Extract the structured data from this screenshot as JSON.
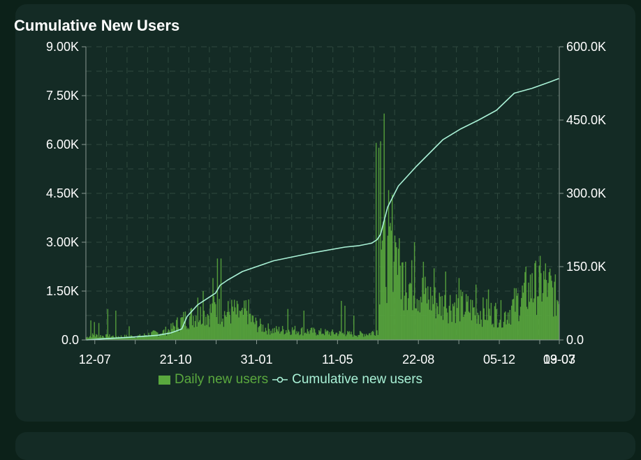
{
  "title": "Cumulative New Users",
  "colors": {
    "background": "#0c2119",
    "card": "#142b25",
    "bar": "#5aa83e",
    "line": "#a9f1d6",
    "grid": "#2f4a3f",
    "axis": "#8a9a94",
    "text": "#ffffff"
  },
  "chart_data": {
    "type": "bar",
    "title": "Cumulative New Users",
    "x_tick_labels": [
      "12-07",
      "21-10",
      "31-01",
      "11-05",
      "22-08",
      "05-12",
      "19-03",
      "03-07"
    ],
    "y_left": {
      "ticks": [
        "0.0",
        "1.50K",
        "3.00K",
        "4.50K",
        "6.00K",
        "7.50K",
        "9.00K"
      ],
      "ylim": [
        0,
        9000
      ]
    },
    "y_right": {
      "ticks": [
        "0.0",
        "150.0K",
        "300.0K",
        "450.0K",
        "600.0K"
      ],
      "ylim": [
        0,
        600000
      ]
    },
    "grid": true,
    "legend_position": "bottom",
    "series": [
      {
        "name": "Daily new users",
        "type": "bar",
        "axis": "left",
        "color": "#5aa83e",
        "anchors": [
          [
            0,
            80
          ],
          [
            6,
            150
          ],
          [
            20,
            120
          ],
          [
            40,
            110
          ],
          [
            60,
            120
          ],
          [
            70,
            180
          ],
          [
            85,
            240
          ],
          [
            95,
            340
          ],
          [
            100,
            460
          ],
          [
            110,
            650
          ],
          [
            122,
            780
          ],
          [
            135,
            820
          ],
          [
            145,
            980
          ],
          [
            155,
            820
          ],
          [
            165,
            900
          ],
          [
            175,
            700
          ],
          [
            180,
            980
          ],
          [
            185,
            640
          ],
          [
            190,
            500
          ],
          [
            200,
            380
          ],
          [
            210,
            300
          ],
          [
            230,
            320
          ],
          [
            250,
            270
          ],
          [
            270,
            230
          ],
          [
            290,
            200
          ],
          [
            300,
            180
          ],
          [
            318,
            200
          ],
          [
            327,
            330
          ],
          [
            331,
            3600
          ],
          [
            335,
            2700
          ],
          [
            339,
            2300
          ],
          [
            342,
            3200
          ],
          [
            345,
            3100
          ],
          [
            350,
            2200
          ],
          [
            360,
            1800
          ],
          [
            370,
            1600
          ],
          [
            380,
            1400
          ],
          [
            390,
            1200
          ],
          [
            400,
            1100
          ],
          [
            410,
            1150
          ],
          [
            420,
            1050
          ],
          [
            440,
            900
          ],
          [
            470,
            800
          ],
          [
            480,
            1100
          ],
          [
            495,
            1500
          ],
          [
            505,
            1700
          ],
          [
            515,
            1800
          ],
          [
            520,
            1650
          ],
          [
            527,
            1300
          ]
        ],
        "spikes": [
          [
            5,
            600
          ],
          [
            9,
            550
          ],
          [
            14,
            520
          ],
          [
            24,
            950
          ],
          [
            33,
            900
          ],
          [
            48,
            420
          ],
          [
            108,
            700
          ],
          [
            125,
            1300
          ],
          [
            131,
            1500
          ],
          [
            142,
            1900
          ],
          [
            147,
            2500
          ],
          [
            151,
            2500
          ],
          [
            172,
            900
          ],
          [
            226,
            950
          ],
          [
            244,
            900
          ],
          [
            286,
            1200
          ],
          [
            290,
            1050
          ],
          [
            300,
            750
          ],
          [
            325,
            6050
          ],
          [
            328,
            5900
          ],
          [
            330,
            6100
          ],
          [
            334,
            6950
          ],
          [
            339,
            4600
          ],
          [
            347,
            3000
          ],
          [
            350,
            2800
          ],
          [
            358,
            2400
          ],
          [
            368,
            3000
          ],
          [
            378,
            2400
          ],
          [
            390,
            2200
          ],
          [
            403,
            2100
          ],
          [
            418,
            1900
          ],
          [
            437,
            1700
          ],
          [
            451,
            1550
          ],
          [
            493,
            2250
          ],
          [
            500,
            2050
          ],
          [
            510,
            2050
          ],
          [
            518,
            1750
          ]
        ]
      },
      {
        "name": "Cumulative new users",
        "type": "line",
        "axis": "right",
        "color": "#a9f1d6",
        "x": [
          0,
          20,
          50,
          80,
          95,
          107,
          113,
          125,
          145,
          150,
          158,
          175,
          210,
          250,
          290,
          306,
          320,
          326,
          330,
          338,
          350,
          370,
          400,
          420,
          440,
          460,
          480,
          500,
          520,
          530
        ],
        "y": [
          0,
          2400,
          5600,
          9600,
          14400,
          22400,
          48000,
          72000,
          96000,
          112000,
          122000,
          140000,
          162000,
          177000,
          190000,
          193000,
          198000,
          205000,
          216000,
          272000,
          315000,
          355000,
          410000,
          432000,
          450000,
          470000,
          505000,
          515000,
          528000,
          535000
        ]
      }
    ]
  },
  "legend": {
    "bar_label": "Daily new users",
    "line_label": "Cumulative new users"
  }
}
